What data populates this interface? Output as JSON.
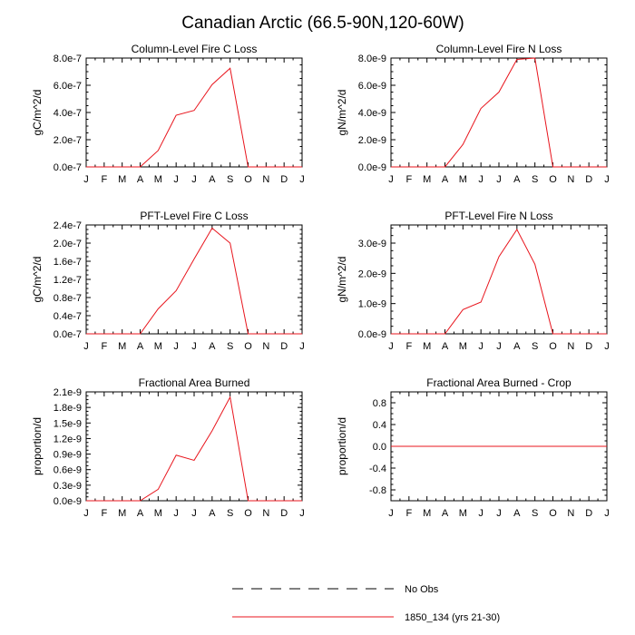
{
  "figure": {
    "title": "Canadian Arctic (66.5-90N,120-60W)",
    "line_color": "#e8141c",
    "obs_color": "#000000"
  },
  "legend": [
    {
      "label": "No Obs",
      "style": "dashed",
      "color": "#000000"
    },
    {
      "label": "1850_134 (yrs 21-30)",
      "style": "solid",
      "color": "#e8141c"
    }
  ],
  "chart_data": [
    {
      "type": "line",
      "title": "Column-Level Fire C Loss",
      "ylabel": "gC/m^2/d",
      "xlabel": "",
      "x": [
        "J",
        "F",
        "M",
        "A",
        "M",
        "J",
        "J",
        "A",
        "S",
        "O",
        "N",
        "D",
        "J"
      ],
      "yticks": [
        0,
        2e-07,
        4e-07,
        6e-07,
        8e-07
      ],
      "ytick_labels": [
        "0.0e-7",
        "2.0e-7",
        "4.0e-7",
        "6.0e-7",
        "8.0e-7"
      ],
      "ylim": [
        0,
        8e-07
      ],
      "series": [
        {
          "values": [
            0,
            0,
            0,
            0,
            1.2e-07,
            3.8e-07,
            4.15e-07,
            6.05e-07,
            7.25e-07,
            0,
            0,
            0,
            0
          ]
        }
      ]
    },
    {
      "type": "line",
      "title": "Column-Level Fire N Loss",
      "ylabel": "gN/m^2/d",
      "xlabel": "",
      "x": [
        "J",
        "F",
        "M",
        "A",
        "M",
        "J",
        "J",
        "A",
        "S",
        "O",
        "N",
        "D",
        "J"
      ],
      "yticks": [
        0,
        2e-09,
        4e-09,
        6e-09,
        8e-09
      ],
      "ytick_labels": [
        "0.0e-9",
        "2.0e-9",
        "4.0e-9",
        "6.0e-9",
        "8.0e-9"
      ],
      "ylim": [
        0,
        8e-09
      ],
      "series": [
        {
          "values": [
            0,
            0,
            0,
            0,
            1.65e-09,
            4.3e-09,
            5.5e-09,
            7.9e-09,
            8e-09,
            0,
            0,
            0,
            0
          ]
        }
      ]
    },
    {
      "type": "line",
      "title": "PFT-Level Fire C Loss",
      "ylabel": "gC/m^2/d",
      "xlabel": "",
      "x": [
        "J",
        "F",
        "M",
        "A",
        "M",
        "J",
        "J",
        "A",
        "S",
        "O",
        "N",
        "D",
        "J"
      ],
      "yticks": [
        0,
        4e-08,
        8e-08,
        1.2e-07,
        1.6e-07,
        2e-07,
        2.4e-07
      ],
      "ytick_labels": [
        "0.0e-7",
        "0.4e-7",
        "0.8e-7",
        "1.2e-7",
        "1.6e-7",
        "2.0e-7",
        "2.4e-7"
      ],
      "ylim": [
        0,
        2.4e-07
      ],
      "series": [
        {
          "values": [
            0,
            0,
            0,
            0,
            5.5e-08,
            9.5e-08,
            1.65e-07,
            2.33e-07,
            2e-07,
            0,
            0,
            0,
            0
          ]
        }
      ]
    },
    {
      "type": "line",
      "title": "PFT-Level Fire N Loss",
      "ylabel": "gN/m^2/d",
      "xlabel": "",
      "x": [
        "J",
        "F",
        "M",
        "A",
        "M",
        "J",
        "J",
        "A",
        "S",
        "O",
        "N",
        "D",
        "J"
      ],
      "yticks": [
        0,
        1e-09,
        2e-09,
        3e-09
      ],
      "ytick_labels": [
        "0.0e-9",
        "1.0e-9",
        "2.0e-9",
        "3.0e-9"
      ],
      "ylim": [
        0,
        3.6e-09
      ],
      "series": [
        {
          "values": [
            0,
            0,
            0,
            0,
            8e-10,
            1.05e-09,
            2.55e-09,
            3.45e-09,
            2.3e-09,
            0,
            0,
            0,
            0
          ]
        }
      ]
    },
    {
      "type": "line",
      "title": "Fractional Area Burned",
      "ylabel": "proportion/d",
      "xlabel": "",
      "x": [
        "J",
        "F",
        "M",
        "A",
        "M",
        "J",
        "J",
        "A",
        "S",
        "O",
        "N",
        "D",
        "J"
      ],
      "yticks": [
        0,
        3e-10,
        6e-10,
        9e-10,
        1.2e-09,
        1.5e-09,
        1.8e-09,
        2.1e-09
      ],
      "ytick_labels": [
        "0.0e-9",
        "0.3e-9",
        "0.6e-9",
        "0.9e-9",
        "1.2e-9",
        "1.5e-9",
        "1.8e-9",
        "2.1e-9"
      ],
      "ylim": [
        0,
        2.1e-09
      ],
      "series": [
        {
          "values": [
            0,
            0,
            0,
            0,
            2.2e-10,
            8.8e-10,
            7.8e-10,
            1.35e-09,
            2e-09,
            0,
            0,
            0,
            0
          ]
        }
      ]
    },
    {
      "type": "line",
      "title": "Fractional Area Burned - Crop",
      "ylabel": "proportion/d",
      "xlabel": "",
      "x": [
        "J",
        "F",
        "M",
        "A",
        "M",
        "J",
        "J",
        "A",
        "S",
        "O",
        "N",
        "D",
        "J"
      ],
      "yticks": [
        -0.8,
        -0.4,
        0,
        0.4,
        0.8
      ],
      "ytick_labels": [
        "-0.8",
        "-0.4",
        "0.0",
        "0.4",
        "0.8"
      ],
      "ylim": [
        -1.0,
        1.0
      ],
      "series": [
        {
          "values": [
            0,
            0,
            0,
            0,
            0,
            0,
            0,
            0,
            0,
            0,
            0,
            0,
            0
          ]
        }
      ]
    }
  ]
}
